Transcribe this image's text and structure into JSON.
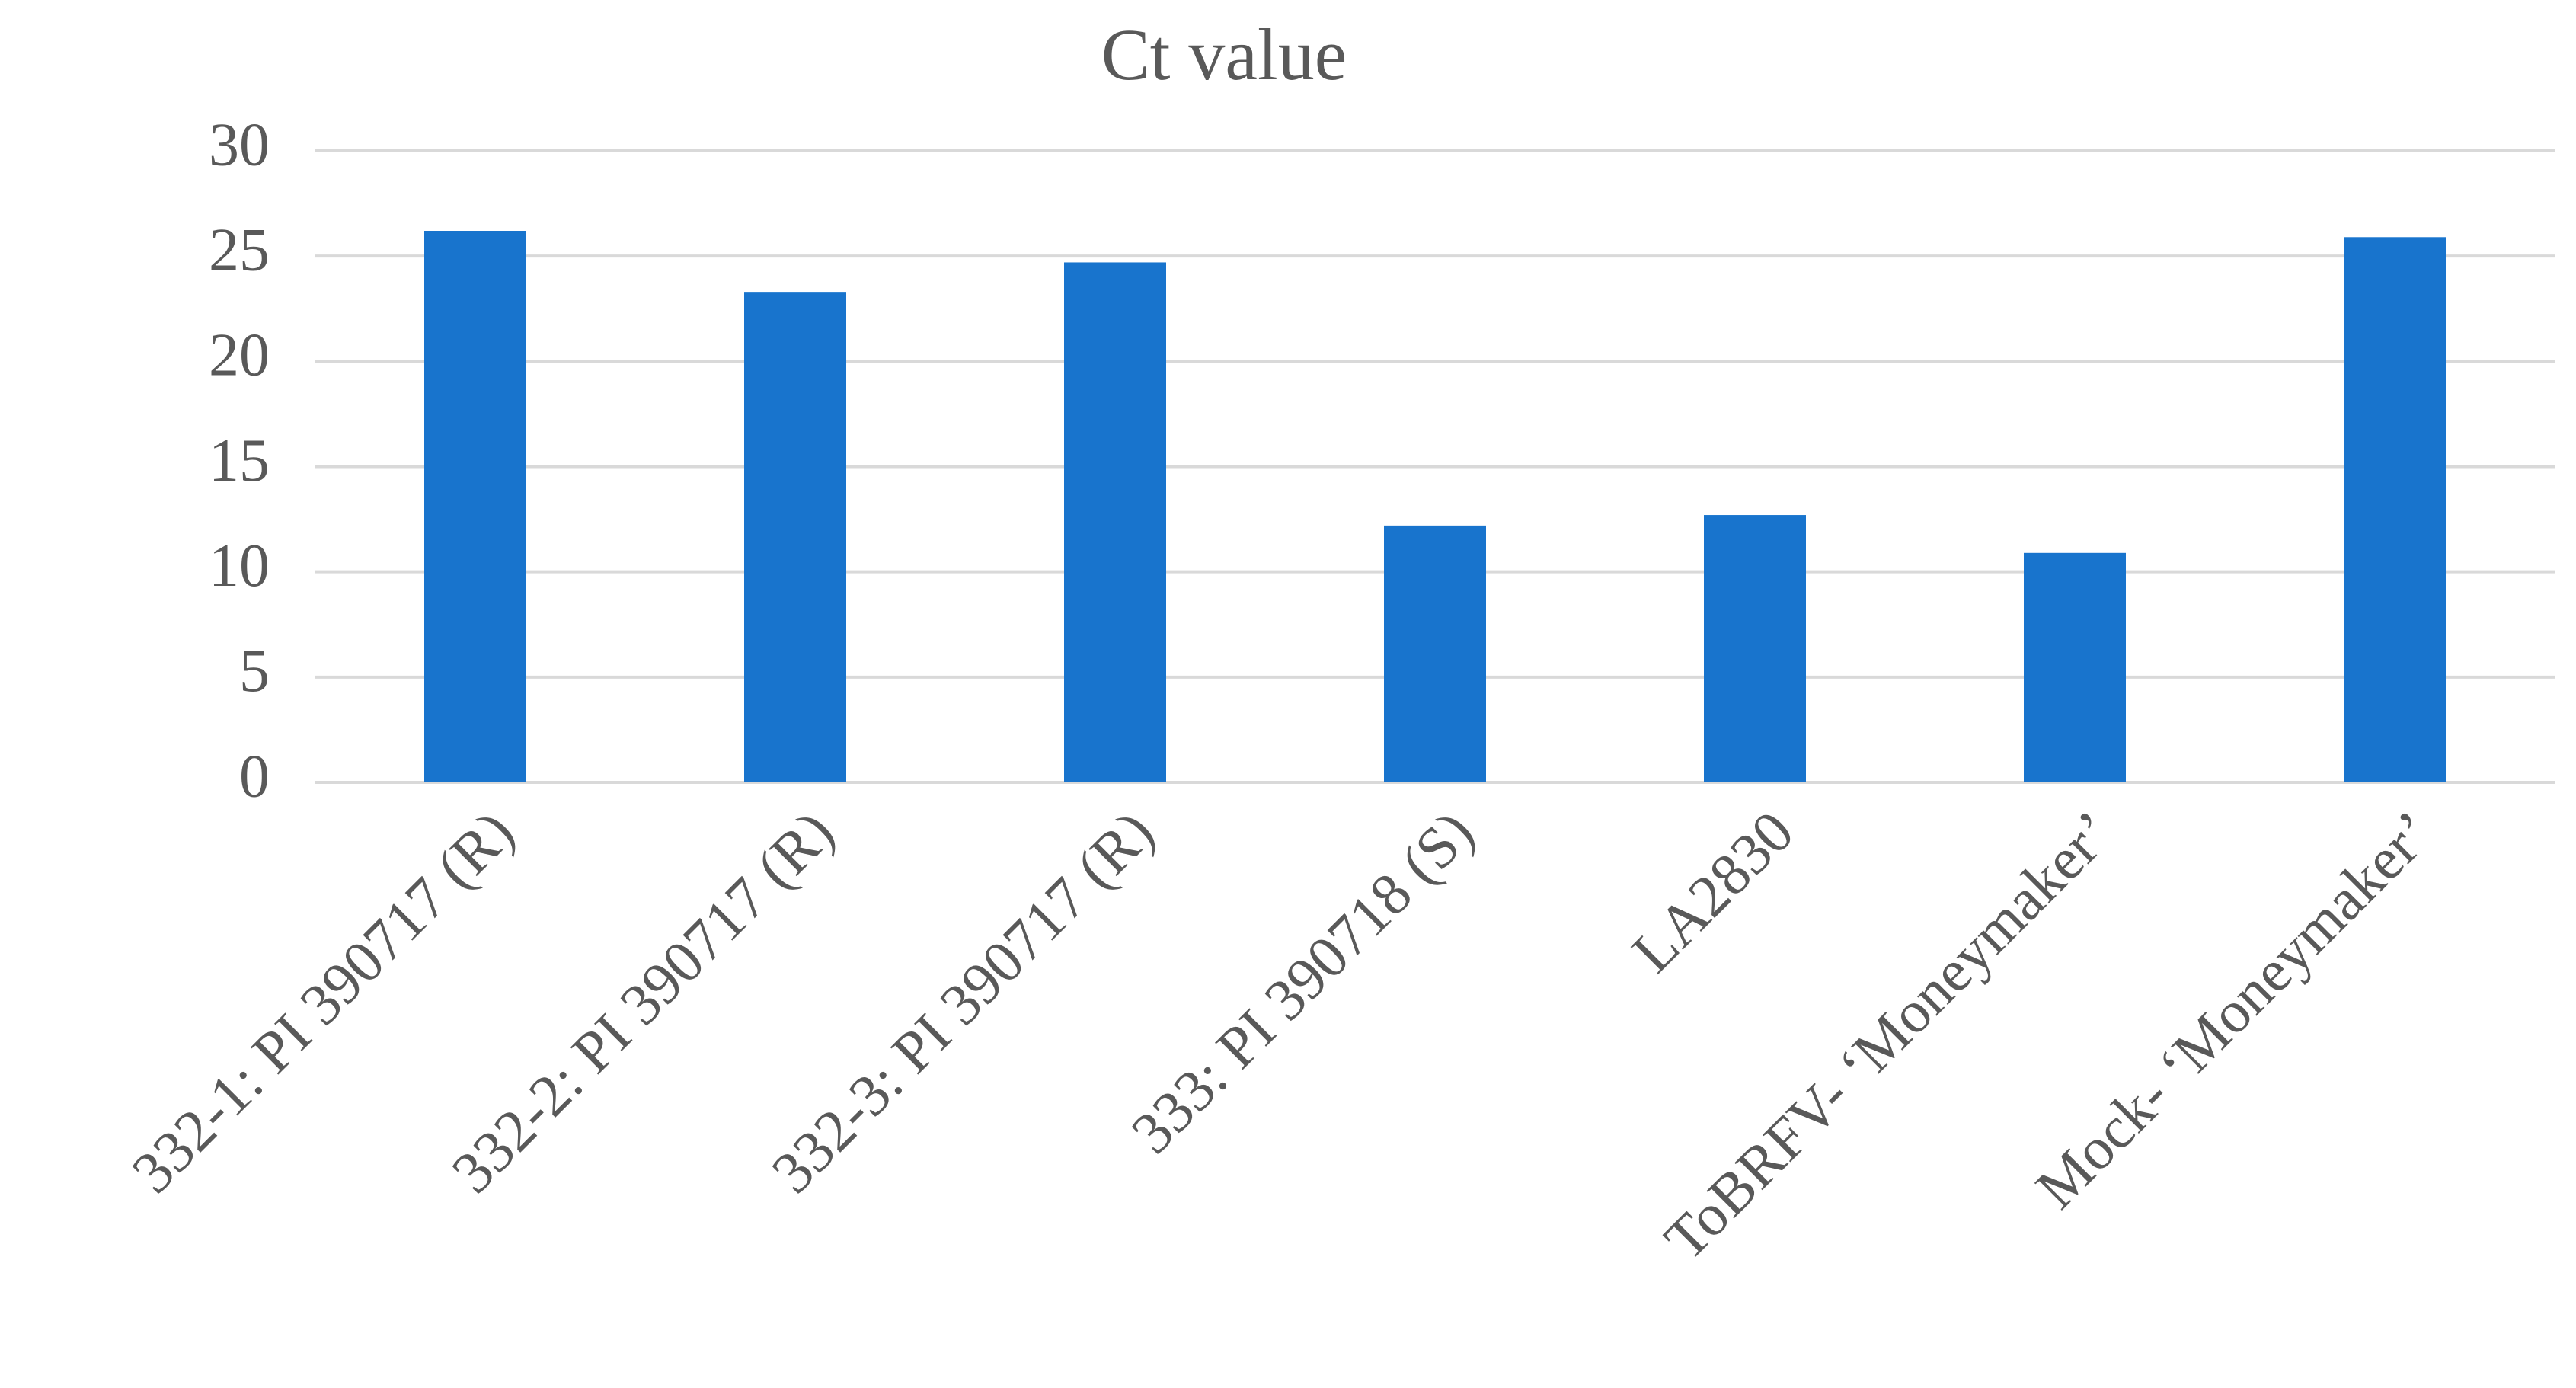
{
  "chart_data": {
    "type": "bar",
    "title": "Ct value",
    "categories": [
      "332-1: PI 390717 (R)",
      "332-2: PI 390717 (R)",
      "332-3: PI 390717 (R)",
      "333: PI 390718 (S)",
      "LA2830",
      "ToBRFV- ‘Moneymaker’",
      "Mock- ‘Moneymaker’"
    ],
    "values": [
      26.2,
      23.3,
      24.7,
      12.2,
      12.7,
      10.9,
      25.9
    ],
    "color": "#1874cd",
    "ylim": [
      0,
      30
    ],
    "yticks": [
      0,
      5,
      10,
      15,
      20,
      25,
      30
    ],
    "grid": true
  }
}
